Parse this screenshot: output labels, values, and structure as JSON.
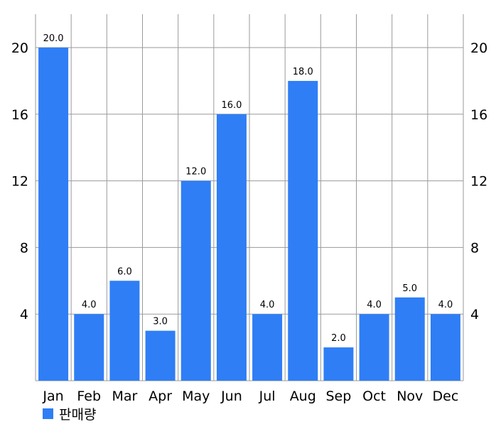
{
  "chart_data": {
    "type": "bar",
    "categories": [
      "Jan",
      "Feb",
      "Mar",
      "Apr",
      "May",
      "Jun",
      "Jul",
      "Aug",
      "Sep",
      "Oct",
      "Nov",
      "Dec"
    ],
    "series": [
      {
        "name": "판매량",
        "values": [
          20,
          4,
          6,
          3,
          12,
          16,
          4,
          18,
          2,
          4,
          5,
          4
        ],
        "color": "#2f7ef5"
      }
    ],
    "data_labels": [
      "20.0",
      "4.0",
      "6.0",
      "3.0",
      "12.0",
      "16.0",
      "4.0",
      "18.0",
      "2.0",
      "4.0",
      "5.0",
      "4.0"
    ],
    "yticks": [
      4,
      8,
      12,
      16,
      20
    ],
    "ylim": [
      0,
      22
    ],
    "grid": true,
    "legend_position": "bottom-left",
    "title": "",
    "xlabel": "",
    "ylabel": ""
  }
}
